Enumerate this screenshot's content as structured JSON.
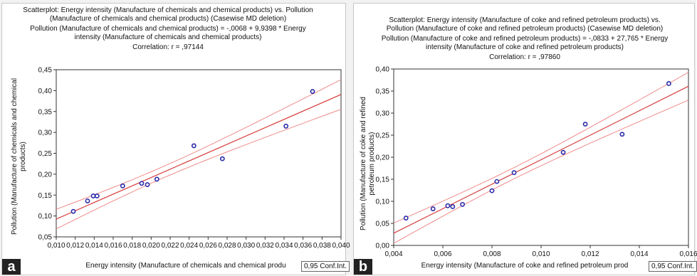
{
  "charts": [
    {
      "panel_label": "a",
      "title_lines": [
        "Scatterplot: Energy intensity (Manufacture of chemicals and chemical products) vs. Pollution",
        "(Manufacture of chemicals and chemical products) (Casewise MD deletion)",
        "Pollution (Manufacture of chemicals and chemical products) = -,0068 + 9,9398 * Energy",
        "intensity (Manufacture of chemicals and chemical products)",
        "Correlation: r = ,97144"
      ],
      "xlabel": "Energy intensity (Manufacture of chemicals and chemical produ",
      "ylabel_lines": [
        "Pollution (Manufacture of chemicals and chemical",
        "products)"
      ],
      "conf_label": "0,95 Conf.Int.",
      "x_ticks": [
        "0,010",
        "0,012",
        "0,014",
        "0,016",
        "0,018",
        "0,020",
        "0,022",
        "0,024",
        "0,026",
        "0,028",
        "0,030",
        "0,032",
        "0,034",
        "0,036",
        "0,038",
        "0,040"
      ],
      "y_ticks": [
        "0,05",
        "0,10",
        "0,15",
        "0,20",
        "0,25",
        "0,30",
        "0,35",
        "0,40",
        "0,45"
      ]
    },
    {
      "panel_label": "b",
      "title_lines": [
        "Scatterplot: Energy intensity (Manufacture of coke and refined petroleum products) vs.",
        "Pollution (Manufacture of coke and refined petroleum products) (Casewise MD deletion)",
        "Pollution (Manufacture of coke and refined petroleum products) = -,0833 + 27,765 * Energy",
        "intensity (Manufacture of coke and refined petroleum products)",
        "Correlation: r = ,97860"
      ],
      "xlabel": "Energy intensity (Manufacture of coke and refined petroleum prod",
      "ylabel_lines": [
        "Pollution (Manufacture of coke and refined",
        "petroleum products)"
      ],
      "conf_label": "0,95 Conf.Int.",
      "x_ticks": [
        "0,004",
        "0,006",
        "0,008",
        "0,010",
        "0,012",
        "0,014",
        "0,016"
      ],
      "y_ticks": [
        "0,00",
        "0,05",
        "0,10",
        "0,15",
        "0,20",
        "0,25",
        "0,30",
        "0,35",
        "0,40"
      ]
    }
  ],
  "chart_data": [
    {
      "type": "scatter",
      "xlim": [
        0.01,
        0.04
      ],
      "ylim": [
        0.05,
        0.45
      ],
      "intercept": -0.0068,
      "slope": 9.9398,
      "points": [
        [
          0.0118,
          0.111
        ],
        [
          0.0133,
          0.136
        ],
        [
          0.0139,
          0.148
        ],
        [
          0.0143,
          0.148
        ],
        [
          0.017,
          0.172
        ],
        [
          0.019,
          0.178
        ],
        [
          0.0196,
          0.175
        ],
        [
          0.0206,
          0.188
        ],
        [
          0.0245,
          0.268
        ],
        [
          0.0275,
          0.237
        ],
        [
          0.0342,
          0.315
        ],
        [
          0.037,
          0.398
        ]
      ],
      "colors": {
        "point": "#2a2aa8",
        "fit": "#d83a3a",
        "ci": "#f08a8a"
      }
    },
    {
      "type": "scatter",
      "xlim": [
        0.004,
        0.016
      ],
      "ylim": [
        0.0,
        0.4
      ],
      "intercept": -0.0833,
      "slope": 27.765,
      "points": [
        [
          0.0045,
          0.062
        ],
        [
          0.0056,
          0.083
        ],
        [
          0.0062,
          0.09
        ],
        [
          0.0064,
          0.088
        ],
        [
          0.0068,
          0.093
        ],
        [
          0.008,
          0.124
        ],
        [
          0.0082,
          0.145
        ],
        [
          0.0089,
          0.165
        ],
        [
          0.0109,
          0.211
        ],
        [
          0.0118,
          0.275
        ],
        [
          0.0133,
          0.252
        ],
        [
          0.0152,
          0.367
        ]
      ],
      "colors": {
        "point": "#2a2aa8",
        "fit": "#d83a3a",
        "ci": "#f08a8a"
      }
    }
  ]
}
